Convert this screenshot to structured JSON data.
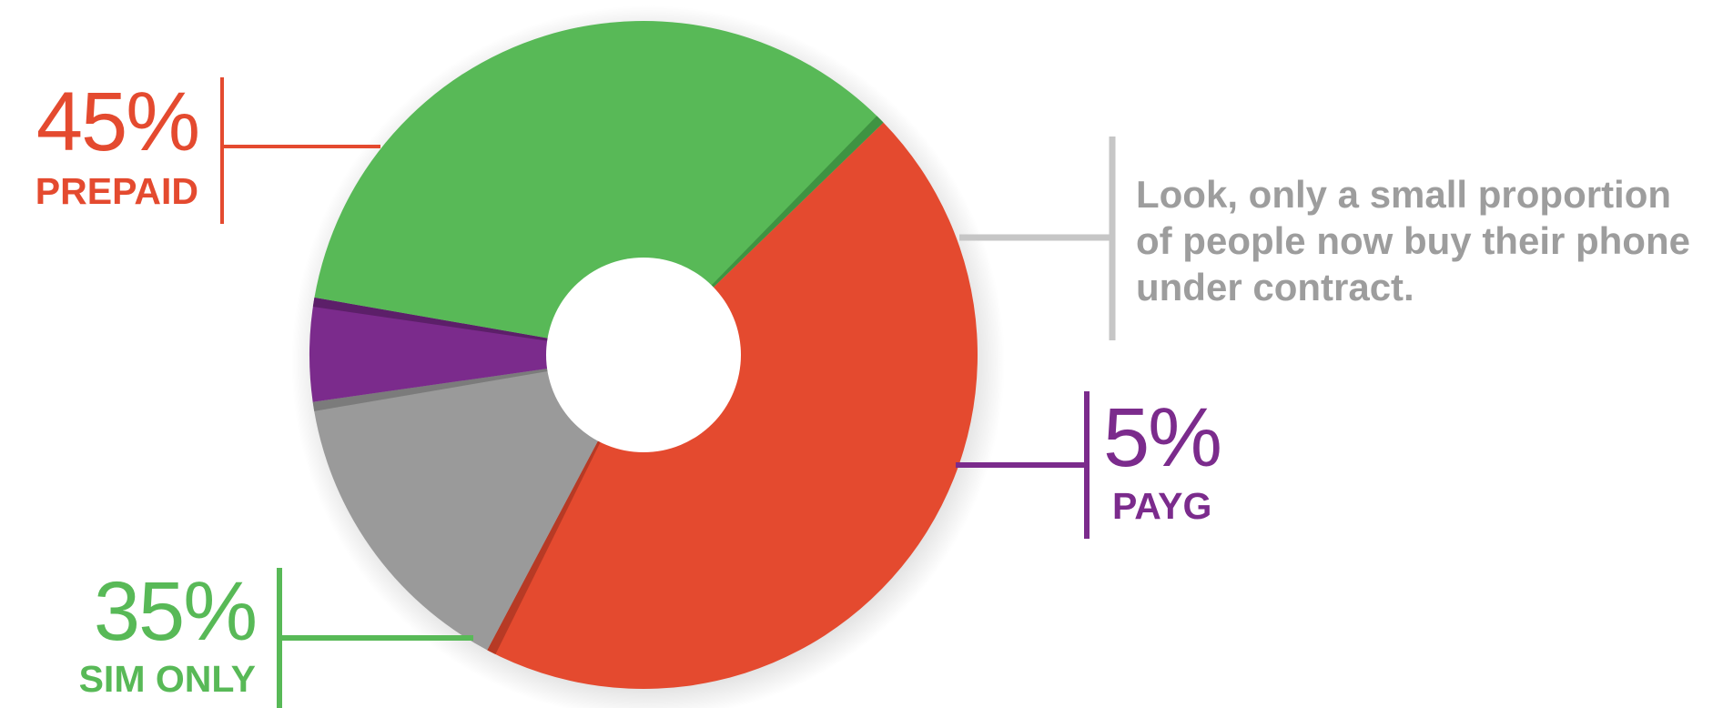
{
  "chart_data": {
    "type": "pie",
    "style": "donut",
    "title": "",
    "slices": [
      {
        "label": "PREPAID",
        "percent_label": "45%",
        "value": 45,
        "color": "#e44a2f",
        "shade": "#b73a25"
      },
      {
        "label": "",
        "percent_label": "",
        "value": 15,
        "color": "#9a9a9a",
        "shade": "#7b7b7b"
      },
      {
        "label": "PAYG",
        "percent_label": "5%",
        "value": 5,
        "color": "#7b2b8c",
        "shade": "#5c1f69"
      },
      {
        "label": "SIM ONLY",
        "percent_label": "35%",
        "value": 35,
        "color": "#58b957",
        "shade": "#3f9342"
      }
    ],
    "annotation": {
      "lines": [
        "Look, only a small proportion",
        "of people now buy their phone",
        "under contract."
      ],
      "color": "#9d9d9d"
    }
  }
}
